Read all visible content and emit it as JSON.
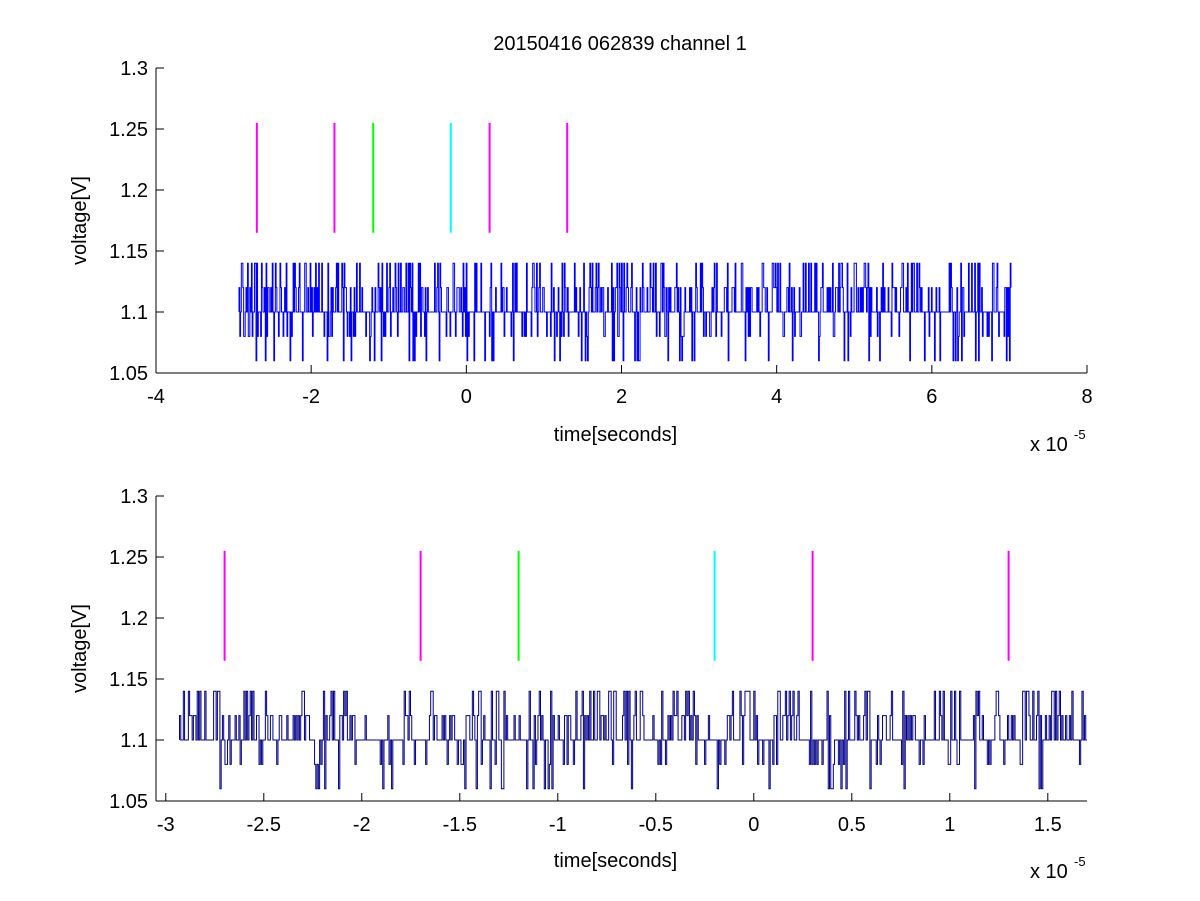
{
  "figure_title": "20150416 062839 channel 1",
  "chart_data": [
    {
      "type": "line",
      "title": "20150416 062839 channel 1",
      "xlabel": "time[seconds]",
      "ylabel": "voltage[V]",
      "x_multiplier_label": "x 10",
      "x_multiplier_exponent": "-5",
      "xlim": [
        -4,
        8
      ],
      "ylim": [
        1.05,
        1.3
      ],
      "x_ticks": [
        -4,
        -2,
        0,
        2,
        4,
        6,
        8
      ],
      "x_tick_labels": [
        "-4",
        "-2",
        "0",
        "2",
        "4",
        "6",
        "8"
      ],
      "y_ticks": [
        1.05,
        1.1,
        1.15,
        1.2,
        1.25,
        1.3
      ],
      "y_tick_labels": [
        "1.05",
        "1.1",
        "1.15",
        "1.2",
        "1.25",
        "1.3"
      ],
      "grid": false,
      "signal": {
        "color": "#0000ff",
        "x_range": [
          -2.93,
          7.02
        ],
        "levels": [
          1.06,
          1.08,
          1.1,
          1.12,
          1.14
        ],
        "baseline": 1.1
      },
      "markers": [
        {
          "x": -2.7,
          "color": "#ff00ff",
          "y_range": [
            1.165,
            1.255
          ]
        },
        {
          "x": -1.7,
          "color": "#ff00ff",
          "y_range": [
            1.165,
            1.255
          ]
        },
        {
          "x": -1.2,
          "color": "#00ff00",
          "y_range": [
            1.165,
            1.255
          ]
        },
        {
          "x": -0.2,
          "color": "#00ffff",
          "y_range": [
            1.165,
            1.255
          ]
        },
        {
          "x": 0.3,
          "color": "#ff00ff",
          "y_range": [
            1.165,
            1.255
          ]
        },
        {
          "x": 1.3,
          "color": "#ff00ff",
          "y_range": [
            1.165,
            1.255
          ]
        }
      ]
    },
    {
      "type": "line",
      "title": "",
      "xlabel": "time[seconds]",
      "ylabel": "voltage[V]",
      "x_multiplier_label": "x 10",
      "x_multiplier_exponent": "-5",
      "xlim": [
        -3.05,
        1.7
      ],
      "ylim": [
        1.05,
        1.3
      ],
      "x_ticks": [
        -3,
        -2.5,
        -2,
        -1.5,
        -1,
        -0.5,
        0,
        0.5,
        1,
        1.5
      ],
      "x_tick_labels": [
        "-3",
        "-2.5",
        "-2",
        "-1.5",
        "-1",
        "-0.5",
        "0",
        "0.5",
        "1",
        "1.5"
      ],
      "y_ticks": [
        1.05,
        1.1,
        1.15,
        1.2,
        1.25,
        1.3
      ],
      "y_tick_labels": [
        "1.05",
        "1.1",
        "1.15",
        "1.2",
        "1.25",
        "1.3"
      ],
      "grid": false,
      "signal": {
        "color": "#00008b",
        "x_range": [
          -2.93,
          1.7
        ],
        "levels": [
          1.06,
          1.08,
          1.1,
          1.12,
          1.14
        ],
        "baseline": 1.1
      },
      "markers": [
        {
          "x": -2.7,
          "color": "#ff00ff",
          "y_range": [
            1.165,
            1.255
          ]
        },
        {
          "x": -1.7,
          "color": "#ff00ff",
          "y_range": [
            1.165,
            1.255
          ]
        },
        {
          "x": -1.2,
          "color": "#00ff00",
          "y_range": [
            1.165,
            1.255
          ]
        },
        {
          "x": -0.2,
          "color": "#00ffff",
          "y_range": [
            1.165,
            1.255
          ]
        },
        {
          "x": 0.3,
          "color": "#ff00ff",
          "y_range": [
            1.165,
            1.255
          ]
        },
        {
          "x": 1.3,
          "color": "#ff00ff",
          "y_range": [
            1.165,
            1.255
          ]
        }
      ]
    }
  ]
}
